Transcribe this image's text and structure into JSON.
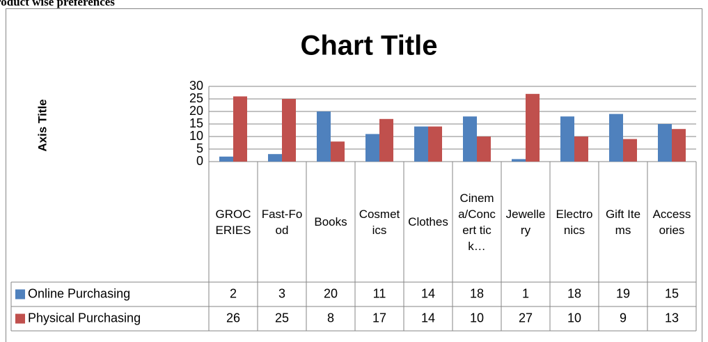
{
  "chart_data": {
    "type": "bar",
    "heading": "roduct wise preferences",
    "title": "Chart Title",
    "y_label": "Axis Title",
    "categories": [
      "GROCERIES",
      "Fast-Food",
      "Books",
      "Cosmetics",
      "Clothes",
      "Cinema/Concert tick…",
      "Jewellery",
      "Electronics",
      "Gift Items",
      "Accessories"
    ],
    "series": [
      {
        "name": "Online Purchasing",
        "color": "#4f81bd",
        "values": [
          2,
          3,
          20,
          11,
          14,
          18,
          1,
          18,
          19,
          15
        ]
      },
      {
        "name": "Physical Purchasing",
        "color": "#c0504d",
        "values": [
          26,
          25,
          8,
          17,
          14,
          10,
          27,
          10,
          9,
          13
        ]
      }
    ],
    "ylim": [
      0,
      30
    ],
    "yticks": [
      0,
      5,
      10,
      15,
      20,
      25,
      30
    ],
    "grid": true,
    "data_table": true
  }
}
